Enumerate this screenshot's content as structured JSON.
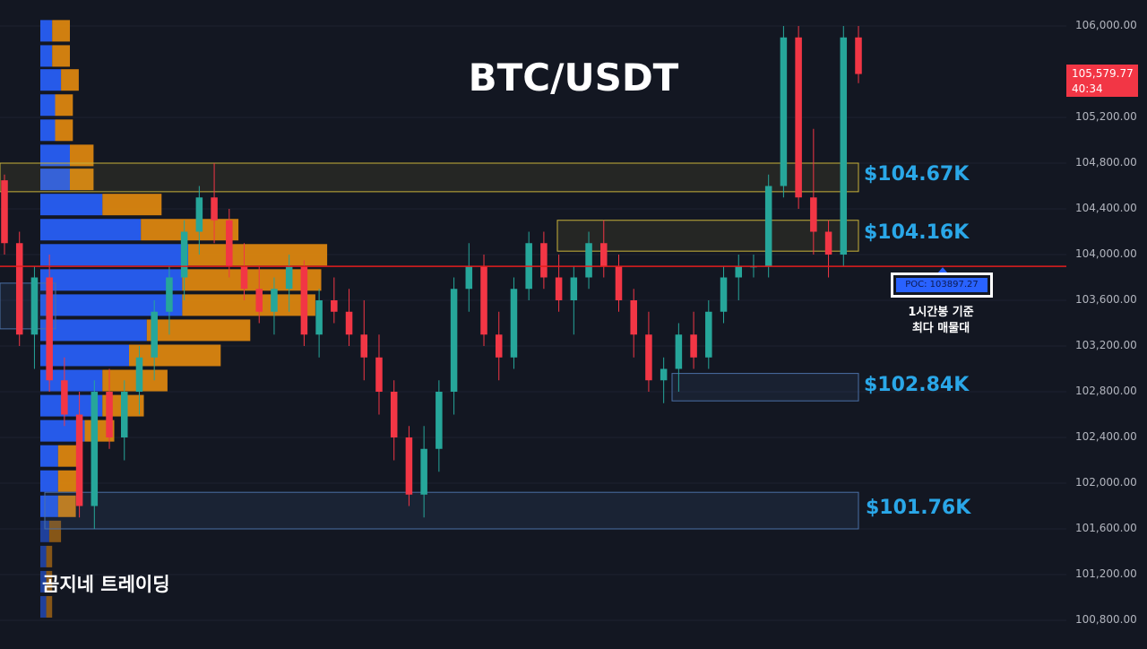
{
  "title": "BTC/USDT",
  "brand": "곰지네 트레이딩",
  "current_price": {
    "value": "105,579.77",
    "countdown": "40:34"
  },
  "poc": {
    "label": "POC: 103897.27",
    "note_line1": "1시간봉 기준",
    "note_line2": "최다 매물대"
  },
  "zones": [
    {
      "label": "$104.67K",
      "top": 104800,
      "bottom": 104550
    },
    {
      "label": "$104.16K",
      "top": 104300,
      "bottom": 104030
    },
    {
      "label": "$102.84K",
      "top": 102960,
      "bottom": 102720
    },
    {
      "label": "$101.76K",
      "top": 101920,
      "bottom": 101600
    }
  ],
  "colors": {
    "background": "#131722",
    "up": "#26a69a",
    "down": "#f23645",
    "poc_line": "#e31e1e",
    "vp_up": "#2962ff",
    "vp_down": "#e58b0e",
    "zone_label": "#2aa7e8"
  },
  "chart_data": {
    "type": "candlestick",
    "symbol": "BTC/USDT",
    "timeframe": "1h",
    "ylim": [
      100700,
      106100
    ],
    "y_ticks": [
      "106,000.00",
      "105,200.00",
      "104,800.00",
      "104,400.00",
      "104,000.00",
      "103,600.00",
      "103,200.00",
      "102,800.00",
      "102,400.00",
      "102,000.00",
      "101,600.00",
      "101,200.00",
      "100,800.00"
    ],
    "poc_price": 103897.27,
    "last_price": 105579.77,
    "volume_profile": [
      {
        "price": 105950,
        "up": 0.04,
        "down": 0.06
      },
      {
        "price": 105730,
        "up": 0.04,
        "down": 0.06
      },
      {
        "price": 105520,
        "up": 0.07,
        "down": 0.06
      },
      {
        "price": 105300,
        "up": 0.05,
        "down": 0.06
      },
      {
        "price": 105080,
        "up": 0.05,
        "down": 0.06
      },
      {
        "price": 104860,
        "up": 0.1,
        "down": 0.08
      },
      {
        "price": 104650,
        "up": 0.1,
        "down": 0.08
      },
      {
        "price": 104430,
        "up": 0.21,
        "down": 0.2
      },
      {
        "price": 104210,
        "up": 0.34,
        "down": 0.33
      },
      {
        "price": 103990,
        "up": 0.5,
        "down": 0.47
      },
      {
        "price": 103770,
        "up": 0.48,
        "down": 0.47
      },
      {
        "price": 103550,
        "up": 0.48,
        "down": 0.45
      },
      {
        "price": 103330,
        "up": 0.36,
        "down": 0.35
      },
      {
        "price": 103110,
        "up": 0.3,
        "down": 0.31
      },
      {
        "price": 102890,
        "up": 0.21,
        "down": 0.22
      },
      {
        "price": 102670,
        "up": 0.21,
        "down": 0.14
      },
      {
        "price": 102450,
        "up": 0.15,
        "down": 0.1
      },
      {
        "price": 102230,
        "up": 0.06,
        "down": 0.07
      },
      {
        "price": 102010,
        "up": 0.06,
        "down": 0.07
      },
      {
        "price": 101790,
        "up": 0.06,
        "down": 0.06
      },
      {
        "price": 101570,
        "up": 0.03,
        "down": 0.04
      },
      {
        "price": 101350,
        "up": 0.02,
        "down": 0.02
      },
      {
        "price": 101130,
        "up": 0.02,
        "down": 0.02
      },
      {
        "price": 100910,
        "up": 0.02,
        "down": 0.02
      }
    ],
    "candles": [
      [
        104650,
        104700,
        104000,
        104100
      ],
      [
        104100,
        104200,
        103200,
        103300
      ],
      [
        103300,
        103900,
        103000,
        103800
      ],
      [
        103800,
        104000,
        102800,
        102900
      ],
      [
        102900,
        103100,
        102500,
        102600
      ],
      [
        102600,
        102800,
        101700,
        101800
      ],
      [
        101800,
        102900,
        101600,
        102800
      ],
      [
        102800,
        103000,
        102300,
        102400
      ],
      [
        102400,
        102900,
        102200,
        102800
      ],
      [
        102800,
        103200,
        102600,
        103100
      ],
      [
        103100,
        103600,
        102900,
        103500
      ],
      [
        103500,
        103900,
        103300,
        103800
      ],
      [
        103800,
        104300,
        103600,
        104200
      ],
      [
        104200,
        104600,
        104000,
        104500
      ],
      [
        104500,
        104800,
        104100,
        104300
      ],
      [
        104300,
        104400,
        103800,
        103900
      ],
      [
        103900,
        104100,
        103600,
        103700
      ],
      [
        103700,
        103900,
        103400,
        103500
      ],
      [
        103500,
        103800,
        103300,
        103700
      ],
      [
        103700,
        104000,
        103500,
        103900
      ],
      [
        103900,
        103950,
        103200,
        103300
      ],
      [
        103300,
        103700,
        103100,
        103600
      ],
      [
        103600,
        103800,
        103400,
        103500
      ],
      [
        103500,
        103700,
        103200,
        103300
      ],
      [
        103300,
        103600,
        102900,
        103100
      ],
      [
        103100,
        103300,
        102600,
        102800
      ],
      [
        102800,
        102900,
        102200,
        102400
      ],
      [
        102400,
        102500,
        101800,
        101900
      ],
      [
        101900,
        102500,
        101700,
        102300
      ],
      [
        102300,
        102900,
        102100,
        102800
      ],
      [
        102800,
        103800,
        102600,
        103700
      ],
      [
        103700,
        104100,
        103500,
        103900
      ],
      [
        103900,
        104000,
        103200,
        103300
      ],
      [
        103300,
        103500,
        102900,
        103100
      ],
      [
        103100,
        103800,
        103000,
        103700
      ],
      [
        103700,
        104200,
        103600,
        104100
      ],
      [
        104100,
        104200,
        103700,
        103800
      ],
      [
        103800,
        104000,
        103500,
        103600
      ],
      [
        103600,
        103900,
        103300,
        103800
      ],
      [
        103800,
        104200,
        103700,
        104100
      ],
      [
        104100,
        104300,
        103800,
        103900
      ],
      [
        103900,
        104000,
        103500,
        103600
      ],
      [
        103600,
        103700,
        103100,
        103300
      ],
      [
        103300,
        103500,
        102800,
        102900
      ],
      [
        102900,
        103100,
        102700,
        103000
      ],
      [
        103000,
        103400,
        102800,
        103300
      ],
      [
        103300,
        103500,
        103000,
        103100
      ],
      [
        103100,
        103600,
        103000,
        103500
      ],
      [
        103500,
        103900,
        103400,
        103800
      ],
      [
        103800,
        104000,
        103600,
        103900
      ],
      [
        103900,
        104000,
        103800,
        103900
      ],
      [
        103900,
        104700,
        103800,
        104600
      ],
      [
        104600,
        106000,
        104500,
        105900
      ],
      [
        105900,
        106000,
        104400,
        104500
      ],
      [
        104500,
        105100,
        104000,
        104200
      ],
      [
        104200,
        104300,
        103800,
        104000
      ],
      [
        104000,
        106000,
        103900,
        105900
      ],
      [
        105900,
        106000,
        105500,
        105580
      ]
    ]
  }
}
